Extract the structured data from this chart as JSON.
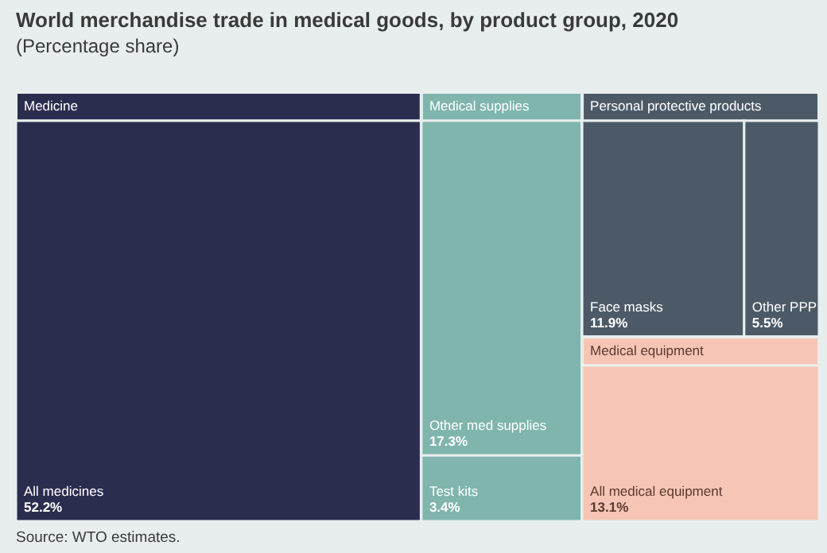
{
  "chart_data": {
    "type": "other",
    "title": "World merchandise trade in medical goods, by product group, 2020",
    "subtitle": "(Percentage share)",
    "categories": [
      "All medicines",
      "Other med supplies",
      "Test kits",
      "Face masks",
      "Other PPP",
      "All medical equipment"
    ],
    "series": [
      {
        "name": "Medicine",
        "color": "#2b2d4f",
        "values": [
          52.2,
          null,
          null,
          null,
          null,
          null
        ],
        "value_labels": [
          "52.2%",
          null,
          null,
          null,
          null,
          null
        ]
      },
      {
        "name": "Medical supplies",
        "color": "#7fb5ad",
        "values": [
          null,
          17.3,
          3.4,
          null,
          null,
          null
        ],
        "value_labels": [
          null,
          "17.3%",
          "3.4%",
          null,
          null,
          null
        ]
      },
      {
        "name": "Personal protective products",
        "color": "#4b5a66",
        "values": [
          null,
          null,
          null,
          11.9,
          5.5,
          null
        ],
        "value_labels": [
          null,
          null,
          null,
          "11.9%",
          "5.5%",
          null
        ]
      },
      {
        "name": "Medical equipment",
        "color": "#f6c5b5",
        "values": [
          null,
          null,
          null,
          null,
          null,
          13.1
        ],
        "value_labels": [
          null,
          null,
          null,
          null,
          null,
          "13.1%"
        ]
      }
    ],
    "annotations": [
      "Source: WTO estimates."
    ]
  }
}
